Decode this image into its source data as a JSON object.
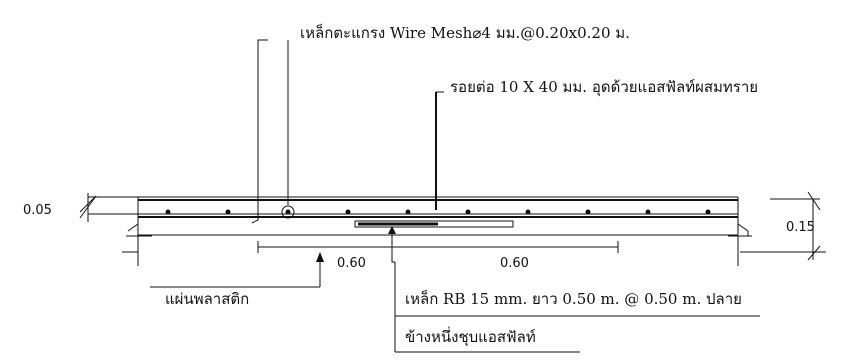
{
  "labels": {
    "wire_mesh": "เหล็กตะแกรง Wire Mesh",
    "wire_mesh_spec": "4 มม.@0.20x0.20 ม.",
    "joint": "รอยต่อ 10 X 40 มม. อุดด้วยแอสฟัลท์ผสมทราย",
    "plastic_sheet": "แผ่นพลาสติก",
    "dowel_line1": "เหล็ก RB 15 mm. ยาว 0.50 m. @ 0.50 m. ปลาย",
    "dowel_line2": "ข้างหนึ่งชุบแอสฟัลท์"
  },
  "dimensions": {
    "top_thickness": "0.05",
    "slab_thickness": "0.15",
    "left_span": "0.60",
    "right_span": "0.60"
  },
  "symbols": {
    "diameter": "⌀"
  }
}
